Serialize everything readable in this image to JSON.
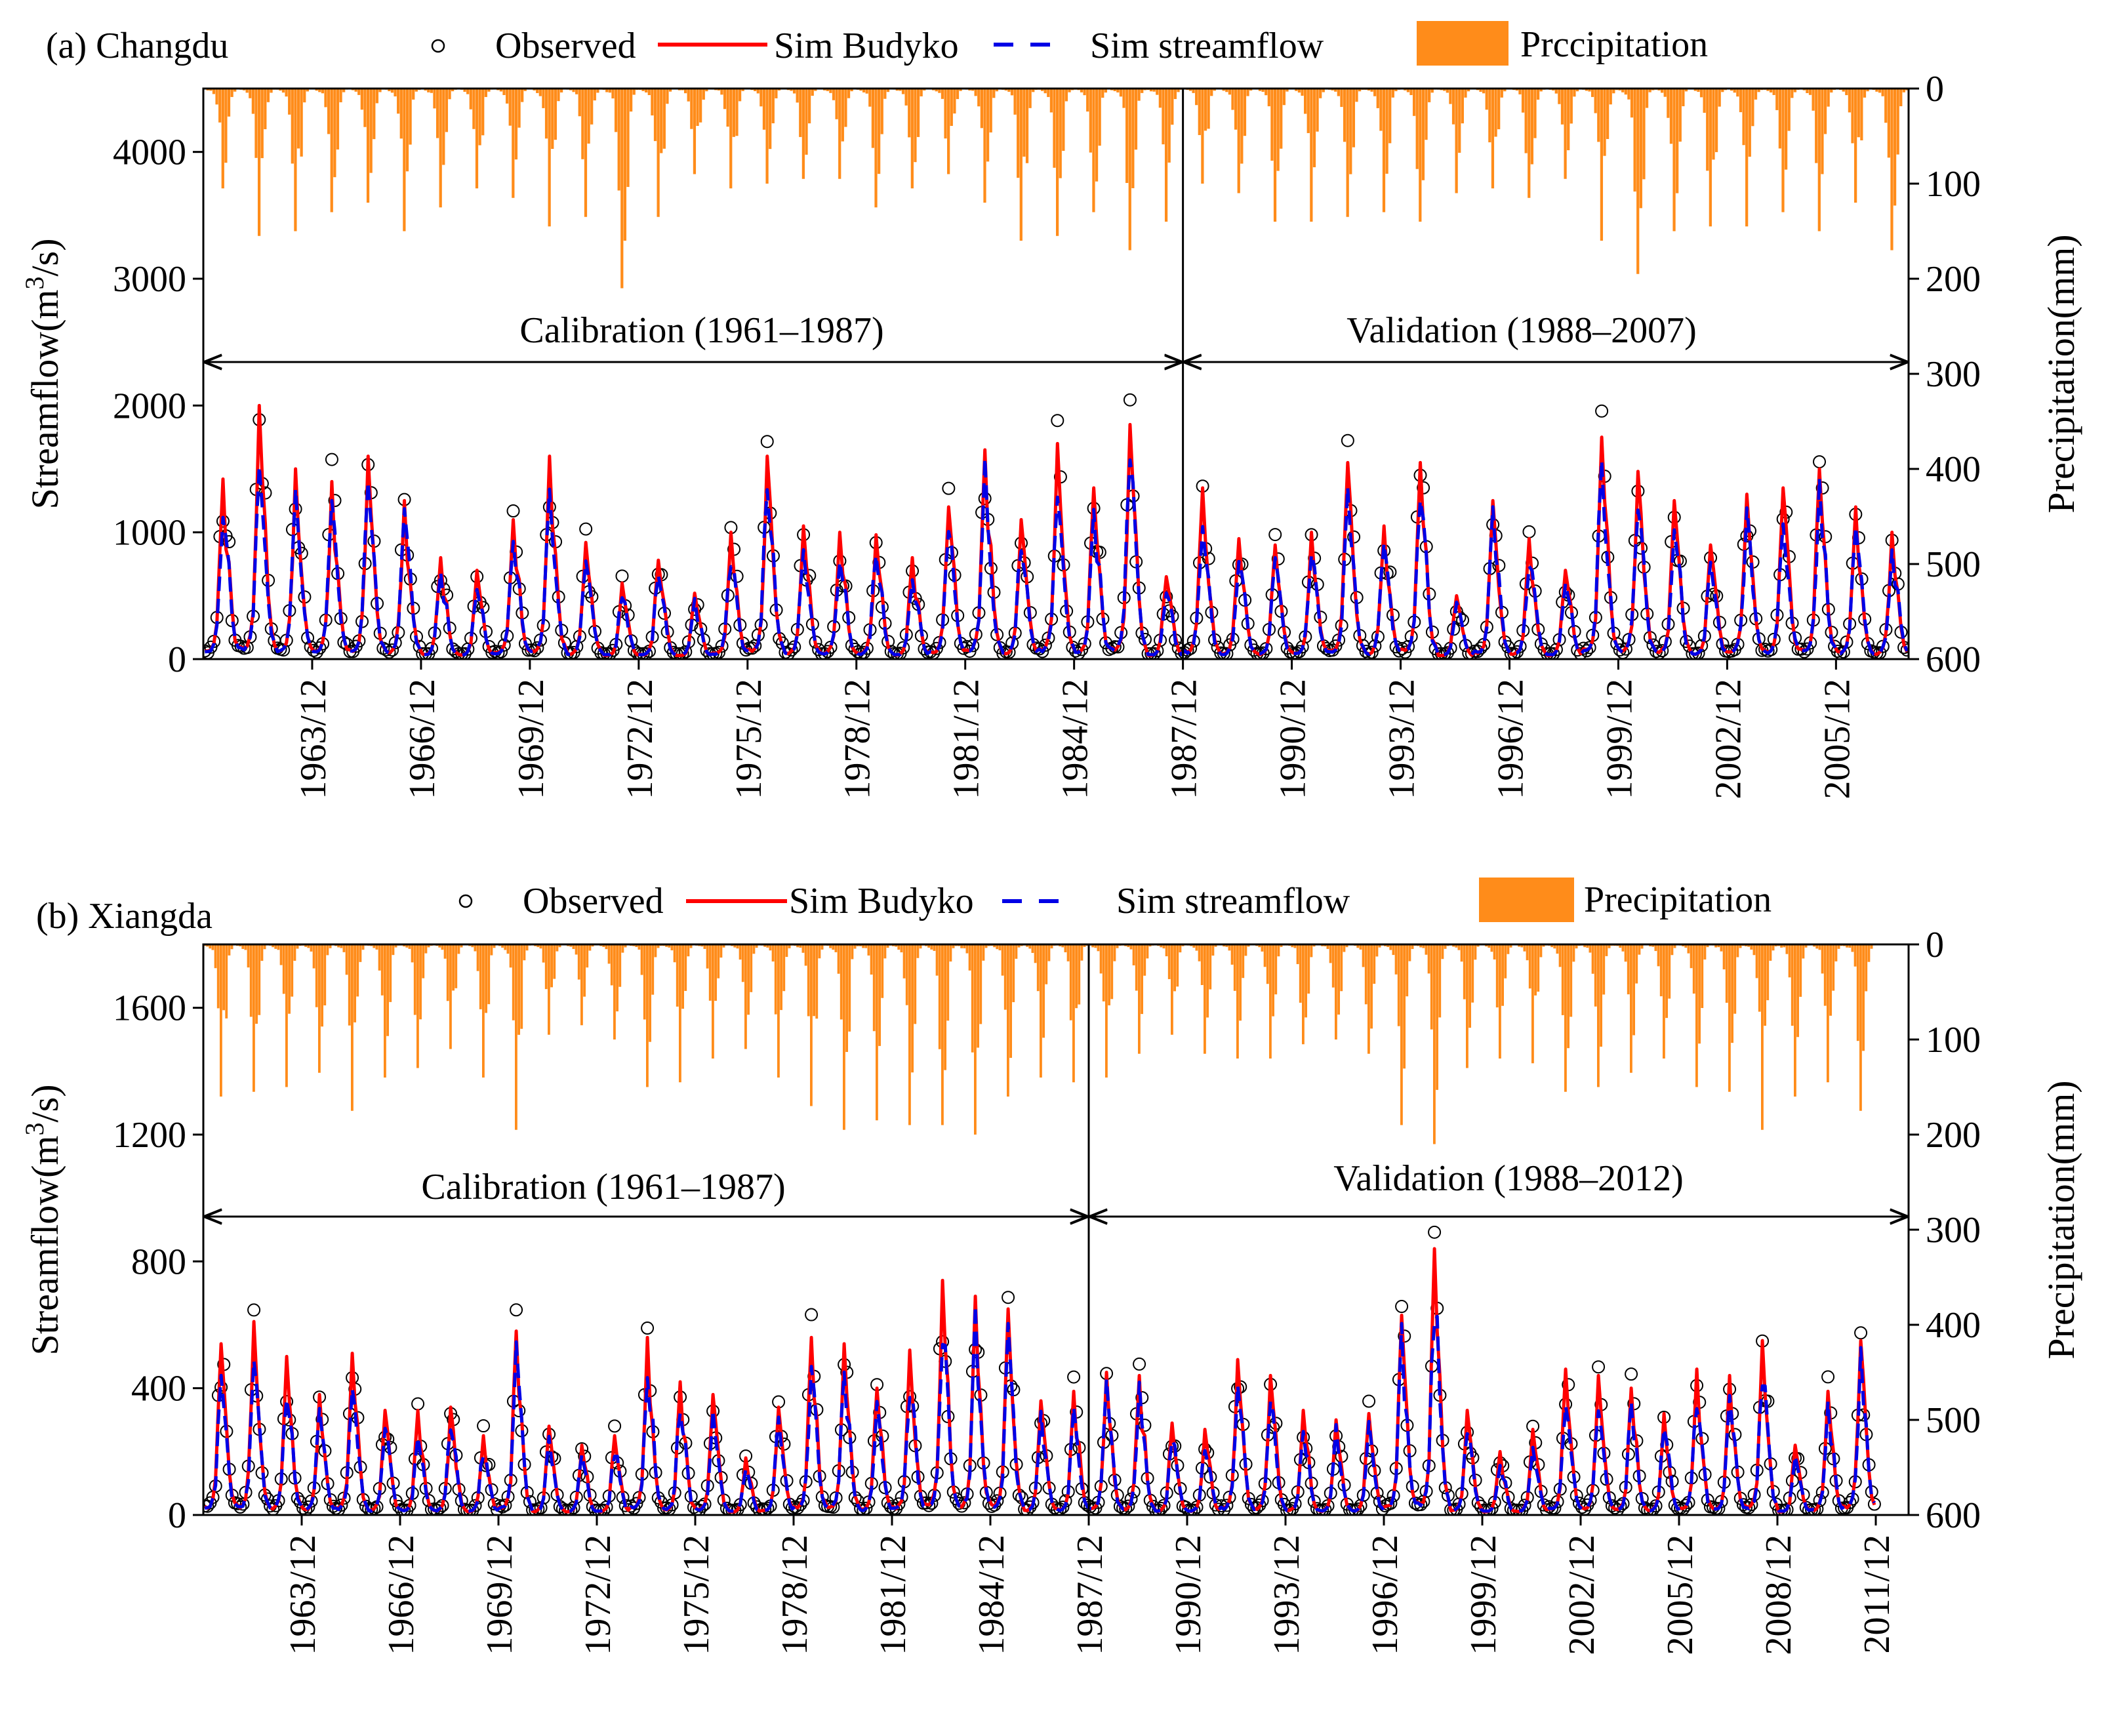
{
  "figure": {
    "colors": {
      "precipitation": "#FF8C1A",
      "sim_budyko": "#FF0000",
      "sim_streamflow": "#0000E6",
      "observed": "#000000",
      "axis": "#000000"
    },
    "legend": {
      "observed": "Observed",
      "sim_budyko": "Sim Budyko",
      "sim_streamflow": "Sim streamflow",
      "precipitation_a": "Prccipitation",
      "precipitation_b": "Precipitation"
    }
  },
  "chart_data": [
    {
      "type": "line",
      "panel_label": "(a) Changdu",
      "ylabel": "Streamflow(m³/s)",
      "ylabel_left_main": "Streamflow(m",
      "ylabel_left_sup": "3",
      "ylabel_left_end": "/s)",
      "ylabel_right": "Precipitation(mm)",
      "ylim_left": [
        0,
        4500
      ],
      "yticks_left": [
        0,
        1000,
        2000,
        3000,
        4000
      ],
      "ylim_right_inverted": [
        0,
        600
      ],
      "yticks_right": [
        0,
        100,
        200,
        300,
        400,
        500,
        600
      ],
      "x_start": 1961,
      "x_end": 2007,
      "xticks": [
        "1963/12",
        "1966/12",
        "1969/12",
        "1972/12",
        "1975/12",
        "1978/12",
        "1981/12",
        "1984/12",
        "1987/12",
        "1990/12",
        "1993/12",
        "1996/12",
        "1999/12",
        "2002/12",
        "2005/12"
      ],
      "xtick_years": [
        1963,
        1966,
        1969,
        1972,
        1975,
        1978,
        1981,
        1984,
        1987,
        1990,
        1993,
        1996,
        1999,
        2002,
        2005
      ],
      "calibration_label": "Calibration (1961–1987)",
      "validation_label": "Validation (1988–2007)",
      "split_year": 1988,
      "annual_peak_streamflow": [
        1420,
        2000,
        1500,
        1400,
        1600,
        1250,
        800,
        700,
        1100,
        1600,
        920,
        600,
        780,
        520,
        1000,
        1600,
        1050,
        1000,
        980,
        800,
        1200,
        1650,
        1100,
        1700,
        1350,
        1850,
        650,
        1350,
        950,
        900,
        1000,
        1550,
        1050,
        1550,
        500,
        1250,
        950,
        700,
        1750,
        1480,
        1250,
        900,
        1300,
        1350,
        1500,
        1200,
        1000
      ],
      "annual_peak_precipitation": [
        105,
        155,
        150,
        130,
        120,
        150,
        125,
        105,
        115,
        145,
        135,
        210,
        135,
        90,
        105,
        100,
        95,
        95,
        125,
        105,
        90,
        120,
        160,
        155,
        130,
        170,
        140,
        100,
        110,
        140,
        140,
        135,
        130,
        140,
        110,
        105,
        115,
        95,
        160,
        195,
        150,
        145,
        145,
        130,
        150,
        120,
        170
      ],
      "series": [
        {
          "name": "Observed"
        },
        {
          "name": "Sim Budyko"
        },
        {
          "name": "Sim streamflow"
        },
        {
          "name": "Prccipitation"
        }
      ]
    },
    {
      "type": "line",
      "panel_label": "(b) Xiangda",
      "ylabel": "Streamflow(m³/s)",
      "ylabel_left_main": "Streamflow(m",
      "ylabel_left_sup": "3",
      "ylabel_left_end": "/s)",
      "ylabel_right": "Precipitation(mm)",
      "ylim_left": [
        0,
        1800
      ],
      "yticks_left": [
        0,
        400,
        800,
        1200,
        1600
      ],
      "ylim_right_inverted": [
        0,
        600
      ],
      "yticks_right": [
        0,
        100,
        200,
        300,
        400,
        500,
        600
      ],
      "x_start": 1961,
      "x_end": 2012,
      "xticks": [
        "1963/12",
        "1966/12",
        "1969/12",
        "1972/12",
        "1975/12",
        "1978/12",
        "1981/12",
        "1984/12",
        "1987/12",
        "1990/12",
        "1993/12",
        "1996/12",
        "1999/12",
        "2002/12",
        "2005/12",
        "2008/12",
        "2011/12"
      ],
      "xtick_years": [
        1963,
        1966,
        1969,
        1972,
        1975,
        1978,
        1981,
        1984,
        1987,
        1990,
        1993,
        1996,
        1999,
        2002,
        2005,
        2008,
        2011
      ],
      "calibration_label": "Calibration (1961–1987)",
      "validation_label": "Validation (1988–2012)",
      "split_year": 1988,
      "annual_peak_streamflow": [
        540,
        610,
        500,
        380,
        510,
        330,
        330,
        340,
        250,
        580,
        280,
        220,
        250,
        560,
        420,
        380,
        180,
        340,
        560,
        540,
        400,
        520,
        740,
        690,
        650,
        360,
        390,
        450,
        440,
        290,
        270,
        490,
        440,
        330,
        300,
        320,
        630,
        840,
        330,
        200,
        270,
        460,
        440,
        400,
        320,
        460,
        440,
        550,
        220,
        390,
        550
      ],
      "annual_peak_precipitation": [
        160,
        155,
        150,
        135,
        175,
        140,
        130,
        110,
        140,
        195,
        95,
        85,
        100,
        150,
        145,
        120,
        110,
        140,
        170,
        195,
        185,
        190,
        190,
        200,
        160,
        140,
        145,
        140,
        115,
        95,
        115,
        120,
        120,
        105,
        100,
        115,
        190,
        210,
        130,
        120,
        125,
        155,
        150,
        135,
        120,
        150,
        155,
        195,
        160,
        145,
        175
      ],
      "series": [
        {
          "name": "Observed"
        },
        {
          "name": "Sim Budyko"
        },
        {
          "name": "Sim streamflow"
        },
        {
          "name": "Precipitation"
        }
      ]
    }
  ]
}
